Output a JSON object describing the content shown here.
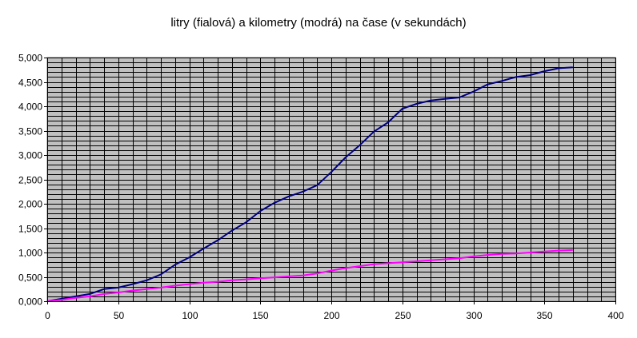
{
  "chart_data": {
    "type": "line",
    "title": "litry (fialová) a kilometry (modrá) na čase (v sekundách)",
    "xlabel": "",
    "ylabel": "",
    "xlim": [
      0,
      400
    ],
    "ylim": [
      0,
      5
    ],
    "x_ticks": [
      0,
      50,
      100,
      150,
      200,
      250,
      300,
      350,
      400
    ],
    "x_tick_labels": [
      "0",
      "50",
      "100",
      "150",
      "200",
      "250",
      "300",
      "350",
      "400"
    ],
    "y_ticks": [
      0,
      0.5,
      1,
      1.5,
      2,
      2.5,
      3,
      3.5,
      4,
      4.5,
      5
    ],
    "y_tick_labels": [
      "0,000",
      "0,500",
      "1,000",
      "1,500",
      "2,000",
      "2,500",
      "3,000",
      "3,500",
      "4,000",
      "4,500",
      "5,000"
    ],
    "y_minor_step": 0.1,
    "x_minor_step": 10,
    "grid": true,
    "plot_background": "#c0c0c0",
    "grid_color": "#000000",
    "series": [
      {
        "color": "#000080",
        "x": [
          0,
          10,
          20,
          30,
          35,
          40,
          50,
          60,
          70,
          80,
          90,
          100,
          110,
          120,
          130,
          140,
          150,
          160,
          170,
          180,
          190,
          200,
          210,
          220,
          230,
          240,
          250,
          260,
          270,
          280,
          290,
          300,
          310,
          320,
          330,
          340,
          350,
          360,
          370
        ],
        "values": [
          0.0,
          0.05,
          0.1,
          0.15,
          0.2,
          0.25,
          0.28,
          0.35,
          0.43,
          0.55,
          0.75,
          0.9,
          1.08,
          1.25,
          1.45,
          1.62,
          1.85,
          2.02,
          2.15,
          2.25,
          2.38,
          2.65,
          2.95,
          3.2,
          3.48,
          3.67,
          3.95,
          4.05,
          4.12,
          4.15,
          4.18,
          4.3,
          4.45,
          4.52,
          4.6,
          4.64,
          4.72,
          4.78,
          4.8
        ]
      },
      {
        "color": "#ff00ff",
        "x": [
          0,
          10,
          20,
          30,
          40,
          50,
          60,
          70,
          80,
          90,
          100,
          110,
          120,
          130,
          140,
          150,
          160,
          170,
          180,
          190,
          200,
          210,
          220,
          230,
          240,
          250,
          260,
          270,
          280,
          290,
          300,
          310,
          320,
          330,
          340,
          350,
          360,
          370
        ],
        "values": [
          0.0,
          0.03,
          0.07,
          0.1,
          0.15,
          0.18,
          0.22,
          0.25,
          0.28,
          0.32,
          0.35,
          0.38,
          0.4,
          0.43,
          0.45,
          0.47,
          0.49,
          0.51,
          0.53,
          0.57,
          0.63,
          0.68,
          0.72,
          0.76,
          0.78,
          0.8,
          0.82,
          0.84,
          0.86,
          0.88,
          0.92,
          0.95,
          0.97,
          0.98,
          1.0,
          1.02,
          1.04,
          1.05
        ]
      }
    ]
  }
}
